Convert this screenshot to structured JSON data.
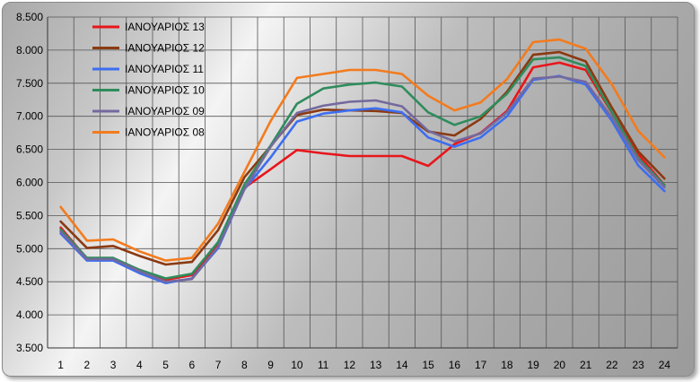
{
  "chart_data": {
    "type": "line",
    "title": "",
    "xlabel": "",
    "ylabel": "",
    "x": [
      1,
      2,
      3,
      4,
      5,
      6,
      7,
      8,
      9,
      10,
      11,
      12,
      13,
      14,
      15,
      16,
      17,
      18,
      19,
      20,
      21,
      22,
      23,
      24
    ],
    "y_ticks": [
      "3.500",
      "4.000",
      "4.500",
      "5.000",
      "5.500",
      "6.000",
      "6.500",
      "7.000",
      "7.500",
      "8.000",
      "8.500"
    ],
    "ylim": [
      3500,
      8500
    ],
    "grid": true,
    "legend_position": "top-left",
    "series": [
      {
        "name": "ΙΑΝΟΥΑΡΙΟΣ 13",
        "color": "#e8161b",
        "values": [
          5320,
          4850,
          4850,
          4680,
          4530,
          4600,
          5050,
          5920,
          6200,
          6490,
          6440,
          6400,
          6400,
          6400,
          6250,
          6580,
          6750,
          7080,
          7740,
          7810,
          7700,
          7050,
          6430,
          5960
        ]
      },
      {
        "name": "ΙΑΝΟΥΑΡΙΟΣ 12",
        "color": "#8b3a12",
        "values": [
          5410,
          5010,
          5040,
          4890,
          4760,
          4800,
          5280,
          6080,
          6550,
          7020,
          7100,
          7090,
          7080,
          7050,
          6770,
          6710,
          6960,
          7370,
          7930,
          7970,
          7830,
          7130,
          6470,
          6060
        ]
      },
      {
        "name": "ΙΑΝΟΥΑΡΙΟΣ 11",
        "color": "#3d6ef0",
        "values": [
          5230,
          4820,
          4820,
          4630,
          4480,
          4550,
          5010,
          5900,
          6380,
          6920,
          7040,
          7090,
          7120,
          7060,
          6680,
          6540,
          6680,
          7000,
          7550,
          7610,
          7480,
          6930,
          6260,
          5870
        ]
      },
      {
        "name": "ΙΑΝΟΥΑΡΙΟΣ 10",
        "color": "#2f8c5c",
        "values": [
          5290,
          4860,
          4860,
          4680,
          4550,
          4620,
          5100,
          5970,
          6560,
          7190,
          7420,
          7480,
          7510,
          7450,
          7060,
          6870,
          7000,
          7340,
          7860,
          7890,
          7760,
          7060,
          6370,
          5960
        ]
      },
      {
        "name": "ΙΑΝΟΥΑΡΙΟΣ 09",
        "color": "#74699e",
        "values": [
          5260,
          4840,
          4840,
          4660,
          4500,
          4540,
          5030,
          5900,
          6540,
          7050,
          7160,
          7220,
          7240,
          7150,
          6780,
          6620,
          6740,
          7060,
          7570,
          7600,
          7520,
          6980,
          6340,
          5930
        ]
      },
      {
        "name": "ΙΑΝΟΥΑΡΙΟΣ 08",
        "color": "#f37b1d",
        "values": [
          5630,
          5120,
          5140,
          4960,
          4820,
          4860,
          5380,
          6160,
          6930,
          7580,
          7640,
          7700,
          7700,
          7640,
          7310,
          7090,
          7210,
          7560,
          8120,
          8160,
          8020,
          7480,
          6780,
          6380
        ]
      }
    ]
  }
}
